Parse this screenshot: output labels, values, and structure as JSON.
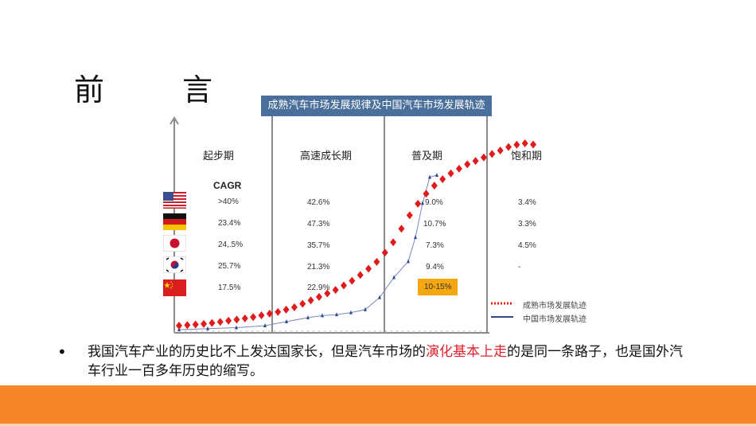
{
  "slide": {
    "title": "前　言",
    "bullet": {
      "text_before": "我国汽车产业的历史比不上发达国家长，但是汽车市场的",
      "highlight": "演化基本上走",
      "text_after": "的是同一条路子，也是国外汽车行业一百多年历史的缩写。",
      "highlight_color": "#e0202a"
    },
    "footer_color": "#f5862a"
  },
  "chart_data": {
    "type": "line",
    "title": "成熟汽车市场发展规律及中国汽车市场发展轨迹",
    "stages": [
      "起步期",
      "高速成长期",
      "普及期",
      "饱和期"
    ],
    "table_header": "CAGR",
    "countries": [
      "USA",
      "Germany",
      "Japan",
      "Korea",
      "China"
    ],
    "cagr_table": [
      {
        "country": "USA",
        "values": [
          ">40%",
          "42.6%",
          "9.0%",
          "3.4%"
        ]
      },
      {
        "country": "Germany",
        "values": [
          "23.4%",
          "47.3%",
          "10.7%",
          "3.3%"
        ]
      },
      {
        "country": "Japan",
        "values": [
          "24,.5%",
          "35.7%",
          "7.3%",
          "4.5%"
        ]
      },
      {
        "country": "Korea",
        "values": [
          "25.7%",
          "21.3%",
          "9.4%",
          "-"
        ]
      },
      {
        "country": "China",
        "values": [
          "17.5%",
          "22.9%",
          "10-15%",
          ""
        ]
      }
    ],
    "highlight_cell": {
      "country": "China",
      "stage": "普及期",
      "value": "10-15%",
      "color": "#f4a70f"
    },
    "legend": [
      {
        "name": "成熟市场发展轨迹",
        "style": "red dotted diamonds",
        "color": "#e01b1b"
      },
      {
        "name": "中国市场发展轨迹",
        "style": "blue line with triangles",
        "color": "#2e4a8a"
      }
    ],
    "series": [
      {
        "name": "成熟市场发展轨迹",
        "points": [
          [
            0,
            2
          ],
          [
            4,
            2.5
          ],
          [
            8,
            3
          ],
          [
            12,
            4
          ],
          [
            16,
            5
          ],
          [
            20,
            6
          ],
          [
            24,
            7.5
          ],
          [
            28,
            9
          ],
          [
            32,
            11
          ],
          [
            36,
            14
          ],
          [
            40,
            17
          ],
          [
            44,
            20
          ],
          [
            48,
            24
          ],
          [
            52,
            29
          ],
          [
            56,
            35
          ],
          [
            60,
            44
          ],
          [
            64,
            56
          ],
          [
            68,
            66
          ],
          [
            72,
            73
          ],
          [
            76,
            78
          ],
          [
            80,
            82
          ],
          [
            84,
            85
          ],
          [
            88,
            88
          ],
          [
            92,
            91
          ],
          [
            96,
            93
          ],
          [
            100,
            92
          ]
        ]
      },
      {
        "name": "中国市场发展轨迹",
        "points": [
          [
            0,
            0
          ],
          [
            8,
            0.5
          ],
          [
            16,
            1
          ],
          [
            24,
            2
          ],
          [
            30,
            4
          ],
          [
            36,
            6
          ],
          [
            40,
            7
          ],
          [
            44,
            7.5
          ],
          [
            48,
            8.5
          ],
          [
            52,
            10
          ],
          [
            56,
            16
          ],
          [
            60,
            26
          ],
          [
            64,
            34
          ],
          [
            66,
            46
          ],
          [
            68,
            63
          ],
          [
            70,
            76
          ],
          [
            72,
            77
          ]
        ]
      }
    ],
    "xlabel": "",
    "ylabel": "",
    "axes": {
      "x_ticks": "unlabeled",
      "y_ticks": "unlabeled",
      "grid": false
    }
  }
}
